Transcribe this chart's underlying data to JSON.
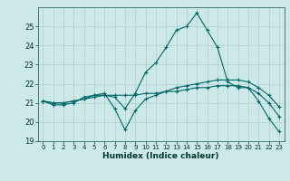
{
  "title": "",
  "xlabel": "Humidex (Indice chaleur)",
  "background_color": "#cce8e8",
  "grid_color": "#b0cccc",
  "line_color": "#006666",
  "xlim": [
    -0.5,
    23.5
  ],
  "ylim": [
    19,
    26
  ],
  "yticks": [
    19,
    20,
    21,
    22,
    23,
    24,
    25
  ],
  "xticks": [
    0,
    1,
    2,
    3,
    4,
    5,
    6,
    7,
    8,
    9,
    10,
    11,
    12,
    13,
    14,
    15,
    16,
    17,
    18,
    19,
    20,
    21,
    22,
    23
  ],
  "series": [
    [
      21.1,
      20.9,
      20.9,
      21.0,
      21.3,
      21.4,
      21.4,
      21.3,
      20.7,
      21.5,
      22.6,
      23.1,
      23.9,
      24.8,
      25.0,
      25.7,
      24.8,
      23.9,
      22.1,
      21.8,
      21.8,
      21.1,
      20.2,
      19.5
    ],
    [
      21.1,
      21.0,
      21.0,
      21.1,
      21.2,
      21.3,
      21.4,
      21.4,
      21.4,
      21.4,
      21.5,
      21.5,
      21.6,
      21.6,
      21.7,
      21.8,
      21.8,
      21.9,
      21.9,
      21.9,
      21.8,
      21.5,
      21.0,
      20.3
    ],
    [
      21.1,
      21.0,
      21.0,
      21.1,
      21.2,
      21.4,
      21.5,
      20.7,
      19.6,
      20.6,
      21.2,
      21.4,
      21.6,
      21.8,
      21.9,
      22.0,
      22.1,
      22.2,
      22.2,
      22.2,
      22.1,
      21.8,
      21.4,
      20.8
    ]
  ],
  "figsize": [
    3.2,
    2.0
  ],
  "dpi": 100
}
